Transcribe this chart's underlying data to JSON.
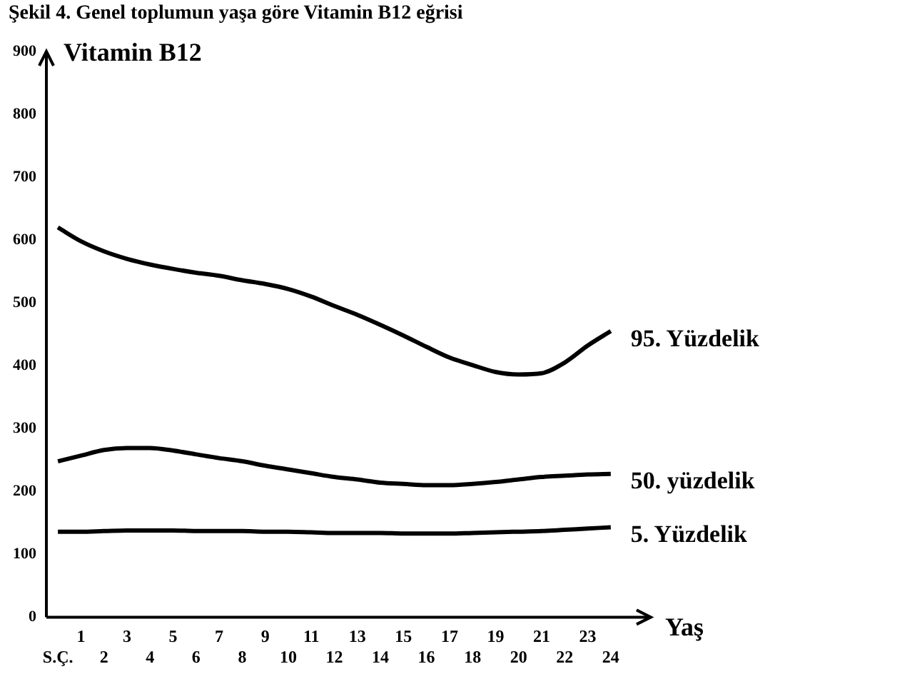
{
  "chart_data": {
    "type": "line",
    "title": "Şekil 4. Genel toplumun yaşa göre Vitamin B12 eğrisi",
    "ylabel": "Vitamin B12",
    "xlabel": "Yaş",
    "categories": [
      "S.Ç.",
      "1",
      "2",
      "3",
      "4",
      "5",
      "6",
      "7",
      "8",
      "9",
      "10",
      "11",
      "12",
      "13",
      "14",
      "15",
      "16",
      "17",
      "18",
      "19",
      "20",
      "21",
      "22",
      "23",
      "24"
    ],
    "series": [
      {
        "name": "95. Yüzdelik",
        "color": "#000000",
        "values": [
          620,
          598,
          582,
          570,
          561,
          554,
          548,
          543,
          536,
          530,
          522,
          510,
          495,
          481,
          465,
          448,
          430,
          413,
          401,
          390,
          386,
          388,
          405,
          432,
          455
        ]
      },
      {
        "name": "50. yüzdelik",
        "color": "#000000",
        "values": [
          248,
          257,
          266,
          269,
          269,
          265,
          259,
          253,
          248,
          241,
          235,
          229,
          223,
          219,
          214,
          212,
          210,
          210,
          212,
          215,
          219,
          223,
          225,
          227,
          228
        ]
      },
      {
        "name": "5. Yüzdelik",
        "color": "#000000",
        "values": [
          136,
          136,
          137,
          138,
          138,
          138,
          137,
          137,
          137,
          136,
          136,
          135,
          134,
          134,
          134,
          133,
          133,
          133,
          134,
          135,
          136,
          137,
          139,
          141,
          143
        ]
      }
    ],
    "ylim": [
      0,
      900
    ],
    "yticks": [
      0,
      100,
      200,
      300,
      400,
      500,
      600,
      700,
      800,
      900
    ],
    "grid": false,
    "legend": false,
    "marker": "none",
    "line_style": "solid"
  }
}
